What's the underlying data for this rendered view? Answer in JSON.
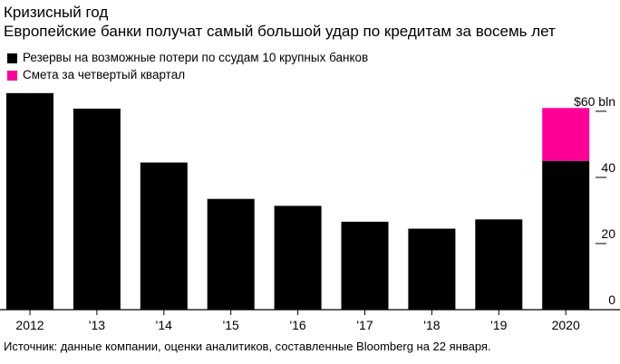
{
  "header": {
    "title": "Кризисный год",
    "subtitle": "Европейские банки получат самый большой удар по кредитам за восемь лет"
  },
  "legend": [
    {
      "label": "Резервы на возможные потери по ссудам 10 крупных банков",
      "color": "#000000"
    },
    {
      "label": "Смета за четвертый квартал",
      "color": "#ff0096"
    }
  ],
  "source": "Источник: данные компании, оценки аналитиков, составленные Bloomberg на 22 января.",
  "chart_data": {
    "type": "bar",
    "stacked": true,
    "categories": [
      "2012",
      "'13",
      "'14",
      "'15",
      "'16",
      "'17",
      "'18",
      "'19",
      "2020"
    ],
    "series": [
      {
        "name": "Резервы на возможные потери по ссудам 10 крупных банков",
        "color": "#000000",
        "values": [
          65.5,
          60.8,
          44.5,
          33.5,
          31.4,
          26.6,
          24.5,
          27.3,
          45.0
        ]
      },
      {
        "name": "Смета за четвертый квартал",
        "color": "#ff0096",
        "values": [
          0,
          0,
          0,
          0,
          0,
          0,
          0,
          0,
          16.0
        ]
      }
    ],
    "yticks": [
      0,
      20,
      40,
      60
    ],
    "ytick_labels": [
      "0",
      "20",
      "40",
      "$60 bln"
    ],
    "ylim": [
      0,
      66
    ],
    "y_axis_position": "right",
    "grid": false
  }
}
